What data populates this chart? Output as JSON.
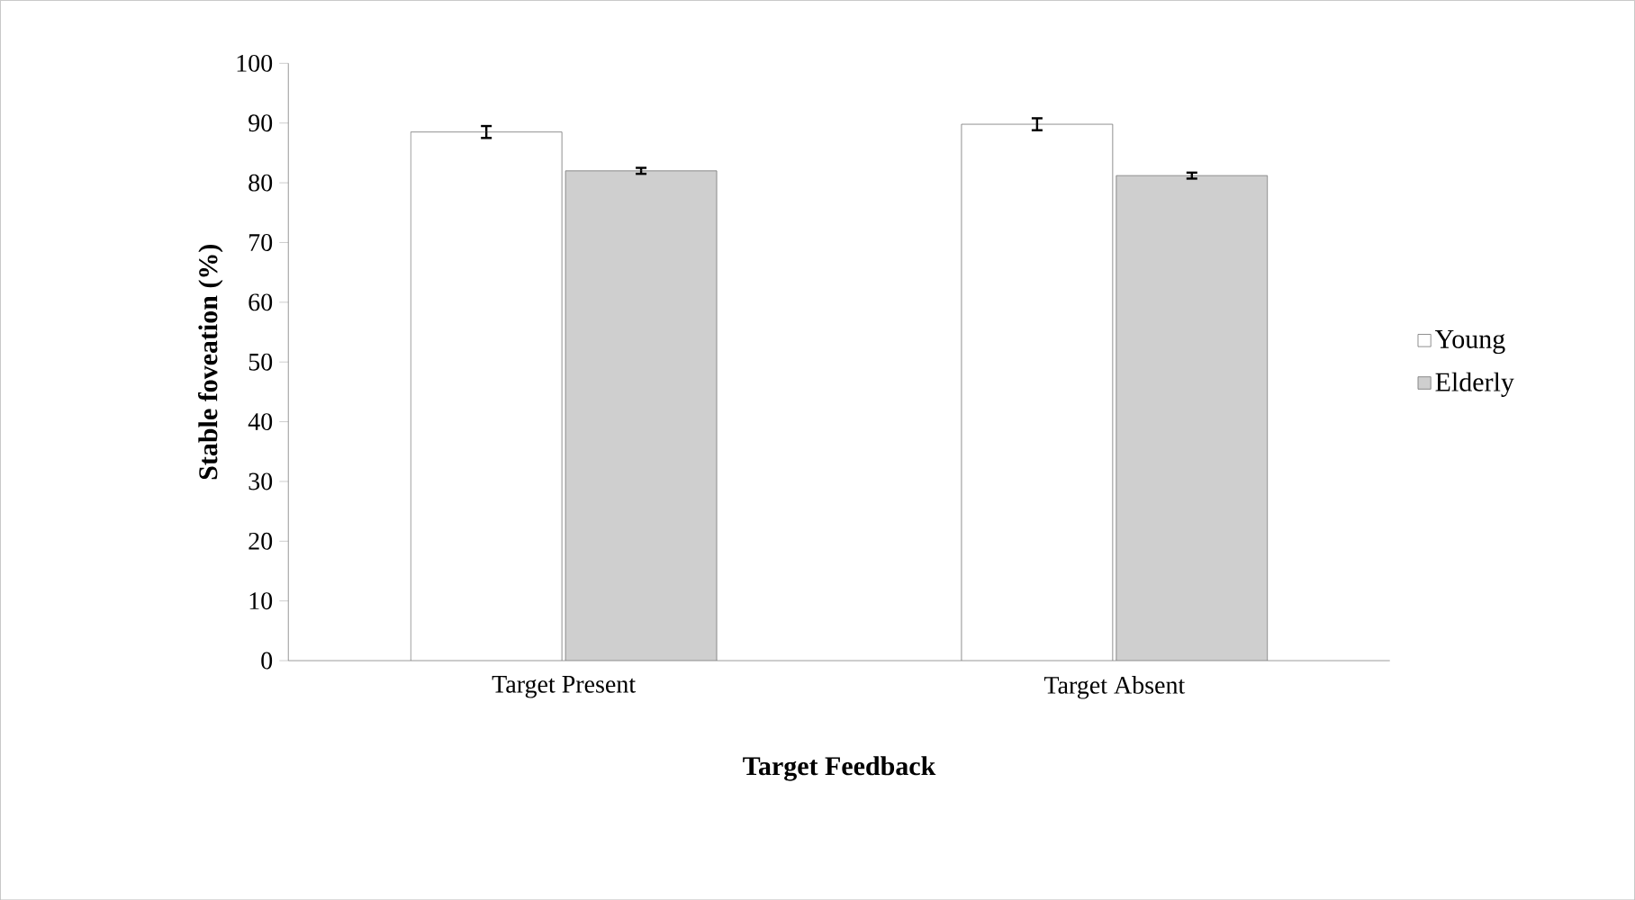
{
  "chart_data": {
    "type": "bar",
    "xlabel": "Target Feedback",
    "ylabel": "Stable foveation (%)",
    "categories": [
      "Target Present",
      "Target Absent"
    ],
    "series": [
      {
        "name": "Young",
        "color": "#ffffff",
        "values": [
          88.5,
          89.8
        ],
        "errors": [
          1.0,
          1.0
        ]
      },
      {
        "name": "Elderly",
        "color": "#cfcfcf",
        "values": [
          82.0,
          81.2
        ],
        "errors": [
          0.5,
          0.5
        ]
      }
    ],
    "ylim": [
      0,
      100
    ],
    "yticks": [
      0,
      10,
      20,
      30,
      40,
      50,
      60,
      70,
      80,
      90,
      100
    ],
    "grid": false,
    "legend": "right"
  }
}
